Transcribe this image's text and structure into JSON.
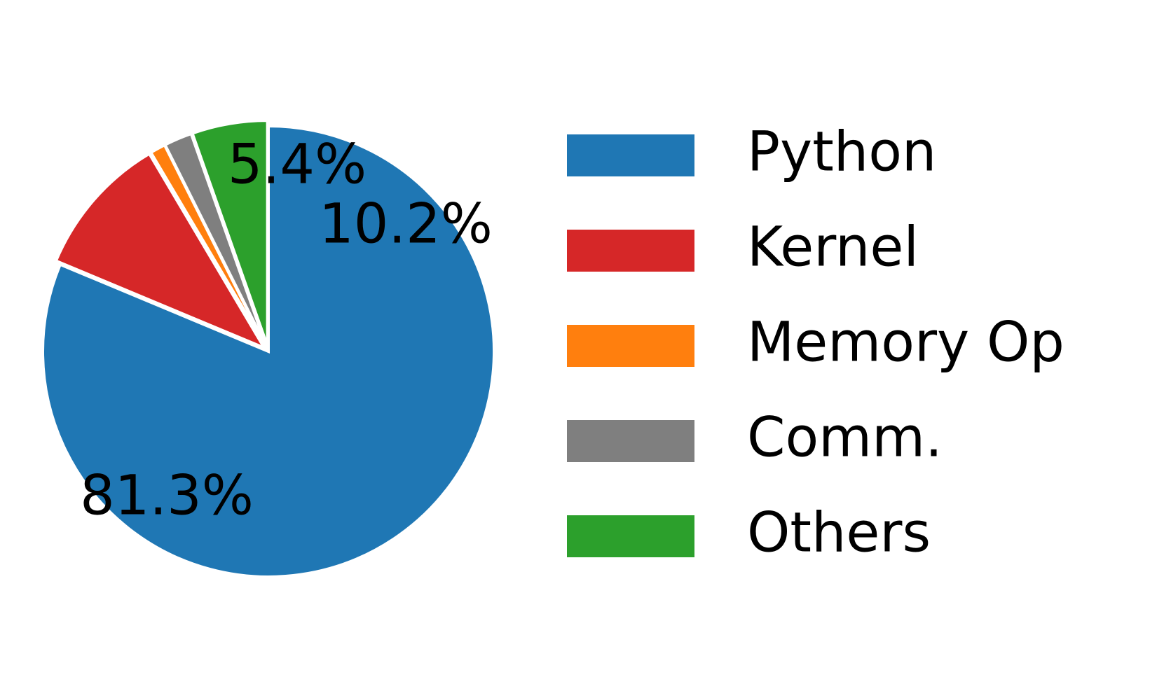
{
  "chart_data": {
    "type": "pie",
    "start_angle_deg": 90,
    "direction": "clockwise",
    "categories": [
      "Python",
      "Kernel",
      "Memory Op",
      "Comm.",
      "Others"
    ],
    "values": [
      81.3,
      10.2,
      1.1,
      2.0,
      5.4
    ],
    "colors": [
      "#1f77b4",
      "#d62728",
      "#ff7f0e",
      "#7f7f7f",
      "#2ca02c"
    ],
    "slice_labels": [
      "81.3%",
      "10.2%",
      "",
      "",
      "5.4%"
    ],
    "legend": {
      "placement": "right",
      "entries": [
        "Python",
        "Kernel",
        "Memory Op",
        "Comm.",
        "Others"
      ]
    }
  }
}
